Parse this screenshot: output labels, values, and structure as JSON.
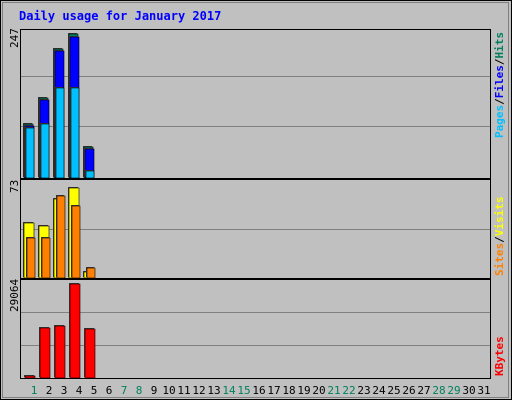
{
  "chart_data": [
    {
      "type": "bar",
      "title": "Daily usage for January 2017",
      "ymax_label": "247",
      "ylim": [
        0,
        247
      ],
      "legend": {
        "placement": "right-vertical",
        "entries": [
          {
            "name": "Pages",
            "color": "#00c0ff"
          },
          {
            "name": "Files",
            "color": "#0000ff"
          },
          {
            "name": "Hits",
            "color": "#00805c"
          }
        ],
        "separator": "/"
      },
      "categories": [
        "1",
        "2",
        "3",
        "4",
        "5",
        "6",
        "7",
        "8",
        "9",
        "10",
        "11",
        "12",
        "13",
        "14",
        "15",
        "16",
        "17",
        "18",
        "19",
        "20",
        "21",
        "22",
        "23",
        "24",
        "25",
        "26",
        "27",
        "28",
        "29",
        "30",
        "31"
      ],
      "series": [
        {
          "name": "Hits",
          "color": "#00805c",
          "values": [
            93,
            138,
            222,
            247,
            54,
            0,
            0,
            0,
            0,
            0,
            0,
            0,
            0,
            0,
            0,
            0,
            0,
            0,
            0,
            0,
            0,
            0,
            0,
            0,
            0,
            0,
            0,
            0,
            0,
            0,
            0
          ]
        },
        {
          "name": "Files",
          "color": "#0000ff",
          "values": [
            89,
            133,
            218,
            242,
            50,
            0,
            0,
            0,
            0,
            0,
            0,
            0,
            0,
            0,
            0,
            0,
            0,
            0,
            0,
            0,
            0,
            0,
            0,
            0,
            0,
            0,
            0,
            0,
            0,
            0,
            0
          ]
        },
        {
          "name": "Pages",
          "color": "#00c0ff",
          "values": [
            86,
            93,
            154,
            154,
            12,
            0,
            0,
            0,
            0,
            0,
            0,
            0,
            0,
            0,
            0,
            0,
            0,
            0,
            0,
            0,
            0,
            0,
            0,
            0,
            0,
            0,
            0,
            0,
            0,
            0,
            0
          ]
        }
      ]
    },
    {
      "type": "bar",
      "ymax_label": "73",
      "ylim": [
        0,
        73
      ],
      "legend": {
        "placement": "right-vertical",
        "entries": [
          {
            "name": "Sites",
            "color": "#ff8000"
          },
          {
            "name": "Visits",
            "color": "#ffff00"
          }
        ],
        "separator": "/"
      },
      "categories": [
        "1",
        "2",
        "3",
        "4",
        "5",
        "6",
        "7",
        "8",
        "9",
        "10",
        "11",
        "12",
        "13",
        "14",
        "15",
        "16",
        "17",
        "18",
        "19",
        "20",
        "21",
        "22",
        "23",
        "24",
        "25",
        "26",
        "27",
        "28",
        "29",
        "30",
        "31"
      ],
      "series": [
        {
          "name": "Visits",
          "color": "#ffff00",
          "values": [
            43,
            40,
            61,
            70,
            5,
            0,
            0,
            0,
            0,
            0,
            0,
            0,
            0,
            0,
            0,
            0,
            0,
            0,
            0,
            0,
            0,
            0,
            0,
            0,
            0,
            0,
            0,
            0,
            0,
            0,
            0
          ]
        },
        {
          "name": "Sites",
          "color": "#ff8000",
          "values": [
            31,
            31,
            64,
            56,
            8,
            0,
            0,
            0,
            0,
            0,
            0,
            0,
            0,
            0,
            0,
            0,
            0,
            0,
            0,
            0,
            0,
            0,
            0,
            0,
            0,
            0,
            0,
            0,
            0,
            0,
            0
          ]
        }
      ]
    },
    {
      "type": "bar",
      "ymax_label": "29064",
      "ylim": [
        0,
        29064
      ],
      "legend": {
        "placement": "right-vertical",
        "entries": [
          {
            "name": "KBytes",
            "color": "#ff0000"
          }
        ]
      },
      "categories": [
        "1",
        "2",
        "3",
        "4",
        "5",
        "6",
        "7",
        "8",
        "9",
        "10",
        "11",
        "12",
        "13",
        "14",
        "15",
        "16",
        "17",
        "18",
        "19",
        "20",
        "21",
        "22",
        "23",
        "24",
        "25",
        "26",
        "27",
        "28",
        "29",
        "30",
        "31"
      ],
      "series": [
        {
          "name": "KBytes",
          "color": "#ff0000",
          "values": [
            480,
            15600,
            16000,
            29064,
            15200,
            0,
            0,
            0,
            0,
            0,
            0,
            0,
            0,
            0,
            0,
            0,
            0,
            0,
            0,
            0,
            0,
            0,
            0,
            0,
            0,
            0,
            0,
            0,
            0,
            0,
            0
          ]
        }
      ]
    }
  ],
  "x_axis": {
    "labels": [
      "1",
      "2",
      "3",
      "4",
      "5",
      "6",
      "7",
      "8",
      "9",
      "10",
      "11",
      "12",
      "13",
      "14",
      "15",
      "16",
      "17",
      "18",
      "19",
      "20",
      "21",
      "22",
      "23",
      "24",
      "25",
      "26",
      "27",
      "28",
      "29",
      "30",
      "31"
    ],
    "weekend_days": [
      "1",
      "7",
      "8",
      "14",
      "15",
      "21",
      "22",
      "28",
      "29"
    ],
    "weekday_color": "#000000",
    "weekend_color": "#00805c"
  },
  "colors": {
    "background": "#c0c0c0",
    "title": "#0000ff",
    "grid": "#808080",
    "outline": "#000000",
    "shadow": "#404040"
  }
}
